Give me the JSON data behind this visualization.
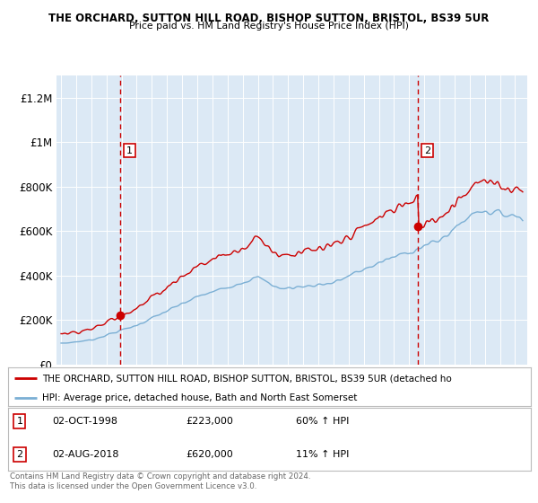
{
  "title1": "THE ORCHARD, SUTTON HILL ROAD, BISHOP SUTTON, BRISTOL, BS39 5UR",
  "title2": "Price paid vs. HM Land Registry's House Price Index (HPI)",
  "bg_color": "#dce9f5",
  "red_color": "#cc0000",
  "blue_color": "#7bafd4",
  "dashed_color": "#cc0000",
  "yticks": [
    0,
    200000,
    400000,
    600000,
    800000,
    1000000,
    1200000
  ],
  "ytick_labels": [
    "£0",
    "£200K",
    "£400K",
    "£600K",
    "£800K",
    "£1M",
    "£1.2M"
  ],
  "sale1_year": 1998.92,
  "sale1_price": 223000,
  "sale2_year": 2018.58,
  "sale2_price": 620000,
  "legend_line1": "THE ORCHARD, SUTTON HILL ROAD, BISHOP SUTTON, BRISTOL, BS39 5UR (detached ho",
  "legend_line2": "HPI: Average price, detached house, Bath and North East Somerset",
  "footer": "Contains HM Land Registry data © Crown copyright and database right 2024.\nThis data is licensed under the Open Government Licence v3.0."
}
